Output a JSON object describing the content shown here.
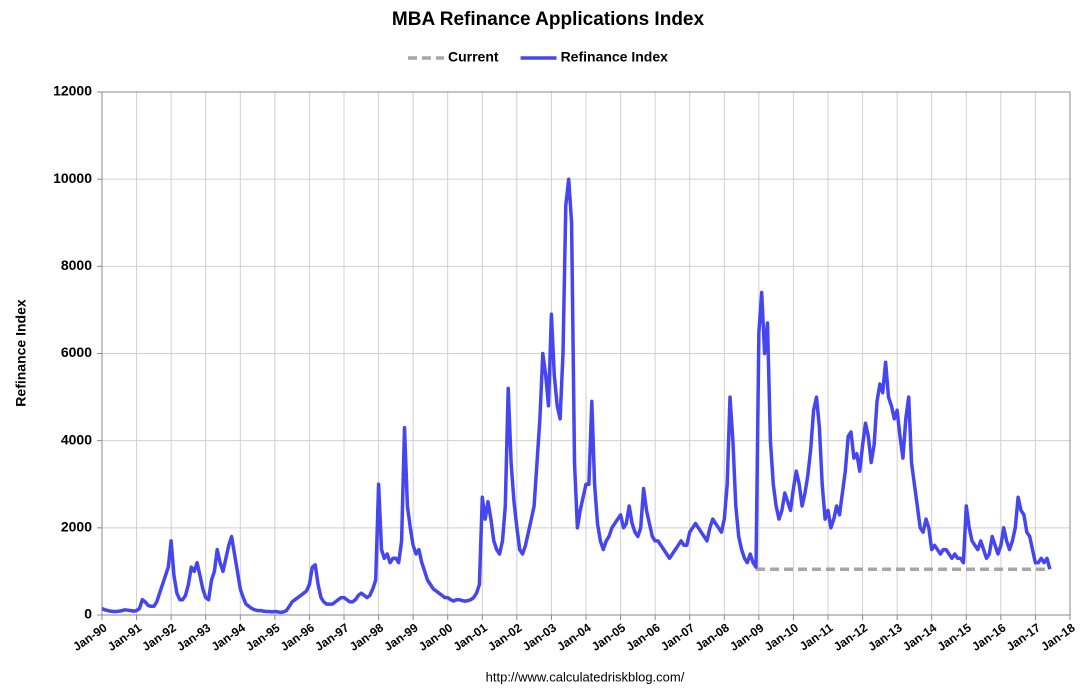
{
  "chart_data": {
    "type": "line",
    "title": "MBA Refinance Applications Index",
    "ylabel": "Refinance Index",
    "source": "http://www.calculatedriskblog.com/",
    "x": [
      "1990-01",
      "1990-02",
      "1990-03",
      "1990-04",
      "1990-05",
      "1990-06",
      "1990-07",
      "1990-08",
      "1990-09",
      "1990-10",
      "1990-11",
      "1990-12",
      "1991-01",
      "1991-02",
      "1991-03",
      "1991-04",
      "1991-05",
      "1991-06",
      "1991-07",
      "1991-08",
      "1991-09",
      "1991-10",
      "1991-11",
      "1991-12",
      "1992-01",
      "1992-02",
      "1992-03",
      "1992-04",
      "1992-05",
      "1992-06",
      "1992-07",
      "1992-08",
      "1992-09",
      "1992-10",
      "1992-11",
      "1992-12",
      "1993-01",
      "1993-02",
      "1993-03",
      "1993-04",
      "1993-05",
      "1993-06",
      "1993-07",
      "1993-08",
      "1993-09",
      "1993-10",
      "1993-11",
      "1993-12",
      "1994-01",
      "1994-02",
      "1994-03",
      "1994-04",
      "1994-05",
      "1994-06",
      "1994-07",
      "1994-08",
      "1994-09",
      "1994-10",
      "1994-11",
      "1994-12",
      "1995-01",
      "1995-02",
      "1995-03",
      "1995-04",
      "1995-05",
      "1995-06",
      "1995-07",
      "1995-08",
      "1995-09",
      "1995-10",
      "1995-11",
      "1995-12",
      "1996-01",
      "1996-02",
      "1996-03",
      "1996-04",
      "1996-05",
      "1996-06",
      "1996-07",
      "1996-08",
      "1996-09",
      "1996-10",
      "1996-11",
      "1996-12",
      "1997-01",
      "1997-02",
      "1997-03",
      "1997-04",
      "1997-05",
      "1997-06",
      "1997-07",
      "1997-08",
      "1997-09",
      "1997-10",
      "1997-11",
      "1997-12",
      "1998-01",
      "1998-02",
      "1998-03",
      "1998-04",
      "1998-05",
      "1998-06",
      "1998-07",
      "1998-08",
      "1998-09",
      "1998-10",
      "1998-11",
      "1998-12",
      "1999-01",
      "1999-02",
      "1999-03",
      "1999-04",
      "1999-05",
      "1999-06",
      "1999-07",
      "1999-08",
      "1999-09",
      "1999-10",
      "1999-11",
      "1999-12",
      "2000-01",
      "2000-02",
      "2000-03",
      "2000-04",
      "2000-05",
      "2000-06",
      "2000-07",
      "2000-08",
      "2000-09",
      "2000-10",
      "2000-11",
      "2000-12",
      "2001-01",
      "2001-02",
      "2001-03",
      "2001-04",
      "2001-05",
      "2001-06",
      "2001-07",
      "2001-08",
      "2001-09",
      "2001-10",
      "2001-11",
      "2001-12",
      "2002-01",
      "2002-02",
      "2002-03",
      "2002-04",
      "2002-05",
      "2002-06",
      "2002-07",
      "2002-08",
      "2002-09",
      "2002-10",
      "2002-11",
      "2002-12",
      "2003-01",
      "2003-02",
      "2003-03",
      "2003-04",
      "2003-05",
      "2003-06",
      "2003-07",
      "2003-08",
      "2003-09",
      "2003-10",
      "2003-11",
      "2003-12",
      "2004-01",
      "2004-02",
      "2004-03",
      "2004-04",
      "2004-05",
      "2004-06",
      "2004-07",
      "2004-08",
      "2004-09",
      "2004-10",
      "2004-11",
      "2004-12",
      "2005-01",
      "2005-02",
      "2005-03",
      "2005-04",
      "2005-05",
      "2005-06",
      "2005-07",
      "2005-08",
      "2005-09",
      "2005-10",
      "2005-11",
      "2005-12",
      "2006-01",
      "2006-02",
      "2006-03",
      "2006-04",
      "2006-05",
      "2006-06",
      "2006-07",
      "2006-08",
      "2006-09",
      "2006-10",
      "2006-11",
      "2006-12",
      "2007-01",
      "2007-02",
      "2007-03",
      "2007-04",
      "2007-05",
      "2007-06",
      "2007-07",
      "2007-08",
      "2007-09",
      "2007-10",
      "2007-11",
      "2007-12",
      "2008-01",
      "2008-02",
      "2008-03",
      "2008-04",
      "2008-05",
      "2008-06",
      "2008-07",
      "2008-08",
      "2008-09",
      "2008-10",
      "2008-11",
      "2008-12",
      "2009-01",
      "2009-02",
      "2009-03",
      "2009-04",
      "2009-05",
      "2009-06",
      "2009-07",
      "2009-08",
      "2009-09",
      "2009-10",
      "2009-11",
      "2009-12",
      "2010-01",
      "2010-02",
      "2010-03",
      "2010-04",
      "2010-05",
      "2010-06",
      "2010-07",
      "2010-08",
      "2010-09",
      "2010-10",
      "2010-11",
      "2010-12",
      "2011-01",
      "2011-02",
      "2011-03",
      "2011-04",
      "2011-05",
      "2011-06",
      "2011-07",
      "2011-08",
      "2011-09",
      "2011-10",
      "2011-11",
      "2011-12",
      "2012-01",
      "2012-02",
      "2012-03",
      "2012-04",
      "2012-05",
      "2012-06",
      "2012-07",
      "2012-08",
      "2012-09",
      "2012-10",
      "2012-11",
      "2012-12",
      "2013-01",
      "2013-02",
      "2013-03",
      "2013-04",
      "2013-05",
      "2013-06",
      "2013-07",
      "2013-08",
      "2013-09",
      "2013-10",
      "2013-11",
      "2013-12",
      "2014-01",
      "2014-02",
      "2014-03",
      "2014-04",
      "2014-05",
      "2014-06",
      "2014-07",
      "2014-08",
      "2014-09",
      "2014-10",
      "2014-11",
      "2014-12",
      "2015-01",
      "2015-02",
      "2015-03",
      "2015-04",
      "2015-05",
      "2015-06",
      "2015-07",
      "2015-08",
      "2015-09",
      "2015-10",
      "2015-11",
      "2015-12",
      "2016-01",
      "2016-02",
      "2016-03",
      "2016-04",
      "2016-05",
      "2016-06",
      "2016-07",
      "2016-08",
      "2016-09",
      "2016-10",
      "2016-11",
      "2016-12",
      "2017-01",
      "2017-02",
      "2017-03",
      "2017-04",
      "2017-05",
      "2017-06"
    ],
    "series": [
      {
        "name": "Current",
        "color": "#a6a6a6",
        "dashed": true,
        "x": [
          "2008-12",
          "2017-06"
        ],
        "values": [
          1050,
          1050
        ]
      },
      {
        "name": "Refinance Index",
        "color": "#4646f0",
        "values": [
          150,
          120,
          100,
          90,
          80,
          80,
          90,
          100,
          120,
          110,
          100,
          90,
          100,
          150,
          350,
          300,
          220,
          200,
          200,
          300,
          500,
          700,
          900,
          1100,
          1700,
          900,
          500,
          350,
          350,
          450,
          700,
          1100,
          1000,
          1200,
          900,
          600,
          400,
          350,
          800,
          1000,
          1500,
          1200,
          1000,
          1300,
          1600,
          1800,
          1400,
          1000,
          600,
          400,
          250,
          200,
          150,
          120,
          100,
          100,
          90,
          80,
          80,
          70,
          80,
          70,
          60,
          70,
          100,
          200,
          300,
          350,
          400,
          450,
          500,
          550,
          700,
          1100,
          1150,
          700,
          400,
          300,
          250,
          250,
          250,
          300,
          350,
          400,
          400,
          350,
          300,
          300,
          350,
          450,
          500,
          450,
          400,
          450,
          600,
          800,
          3000,
          1500,
          1300,
          1400,
          1200,
          1300,
          1300,
          1200,
          1700,
          4300,
          2500,
          2000,
          1600,
          1400,
          1500,
          1200,
          1000,
          800,
          700,
          600,
          550,
          500,
          450,
          400,
          400,
          350,
          320,
          350,
          350,
          330,
          320,
          330,
          350,
          400,
          500,
          700,
          2700,
          2200,
          2600,
          2200,
          1700,
          1500,
          1400,
          1700,
          2500,
          5200,
          3500,
          2600,
          2000,
          1500,
          1400,
          1600,
          1900,
          2200,
          2500,
          3500,
          4500,
          6000,
          5500,
          4800,
          6900,
          5500,
          4800,
          4500,
          6000,
          9400,
          10000,
          9000,
          3500,
          2000,
          2400,
          2700,
          3000,
          3000,
          4900,
          3000,
          2100,
          1700,
          1500,
          1700,
          1800,
          2000,
          2100,
          2200,
          2300,
          2000,
          2100,
          2500,
          2100,
          1900,
          1800,
          2000,
          2900,
          2400,
          2100,
          1800,
          1700,
          1700,
          1600,
          1500,
          1400,
          1300,
          1400,
          1500,
          1600,
          1700,
          1600,
          1600,
          1900,
          2000,
          2100,
          2000,
          1900,
          1800,
          1700,
          2000,
          2200,
          2100,
          2000,
          1900,
          2200,
          3000,
          5000,
          4000,
          2500,
          1800,
          1500,
          1300,
          1200,
          1400,
          1200,
          1100,
          6500,
          7400,
          6000,
          6700,
          4000,
          3000,
          2500,
          2200,
          2400,
          2800,
          2600,
          2400,
          2900,
          3300,
          3000,
          2500,
          2800,
          3200,
          3800,
          4700,
          5000,
          4300,
          3000,
          2200,
          2400,
          2000,
          2200,
          2500,
          2300,
          2800,
          3300,
          4100,
          4200,
          3600,
          3700,
          3300,
          3900,
          4400,
          4100,
          3500,
          3900,
          4900,
          5300,
          5100,
          5800,
          5000,
          4800,
          4500,
          4700,
          4100,
          3600,
          4500,
          5000,
          3500,
          3000,
          2500,
          2000,
          1900,
          2200,
          2000,
          1500,
          1600,
          1500,
          1400,
          1500,
          1500,
          1400,
          1300,
          1400,
          1300,
          1300,
          1200,
          2500,
          2000,
          1700,
          1600,
          1500,
          1700,
          1500,
          1300,
          1400,
          1800,
          1600,
          1400,
          1600,
          2000,
          1700,
          1500,
          1700,
          2000,
          2700,
          2400,
          2300,
          1900,
          1800,
          1500,
          1200,
          1200,
          1300,
          1200,
          1300,
          1050
        ]
      }
    ],
    "xlim": [
      "1990-01",
      "2018-01"
    ],
    "xticks": [
      {
        "value": "1990-01",
        "label": "Jan-90"
      },
      {
        "value": "1991-01",
        "label": "Jan-91"
      },
      {
        "value": "1992-01",
        "label": "Jan-92"
      },
      {
        "value": "1993-01",
        "label": "Jan-93"
      },
      {
        "value": "1994-01",
        "label": "Jan-94"
      },
      {
        "value": "1995-01",
        "label": "Jan-95"
      },
      {
        "value": "1996-01",
        "label": "Jan-96"
      },
      {
        "value": "1997-01",
        "label": "Jan-97"
      },
      {
        "value": "1998-01",
        "label": "Jan-98"
      },
      {
        "value": "1999-01",
        "label": "Jan-99"
      },
      {
        "value": "2000-01",
        "label": "Jan-00"
      },
      {
        "value": "2001-01",
        "label": "Jan-01"
      },
      {
        "value": "2002-01",
        "label": "Jan-02"
      },
      {
        "value": "2003-01",
        "label": "Jan-03"
      },
      {
        "value": "2004-01",
        "label": "Jan-04"
      },
      {
        "value": "2005-01",
        "label": "Jan-05"
      },
      {
        "value": "2006-01",
        "label": "Jan-06"
      },
      {
        "value": "2007-01",
        "label": "Jan-07"
      },
      {
        "value": "2008-01",
        "label": "Jan-08"
      },
      {
        "value": "2009-01",
        "label": "Jan-09"
      },
      {
        "value": "2010-01",
        "label": "Jan-10"
      },
      {
        "value": "2011-01",
        "label": "Jan-11"
      },
      {
        "value": "2012-01",
        "label": "Jan-12"
      },
      {
        "value": "2013-01",
        "label": "Jan-13"
      },
      {
        "value": "2014-01",
        "label": "Jan-14"
      },
      {
        "value": "2015-01",
        "label": "Jan-15"
      },
      {
        "value": "2016-01",
        "label": "Jan-16"
      },
      {
        "value": "2017-01",
        "label": "Jan-17"
      },
      {
        "value": "2018-01",
        "label": "Jan-18"
      }
    ],
    "ylim": [
      0,
      12000
    ],
    "yticks": [
      0,
      2000,
      4000,
      6000,
      8000,
      10000,
      12000
    ],
    "grid": true,
    "legend": "top"
  }
}
